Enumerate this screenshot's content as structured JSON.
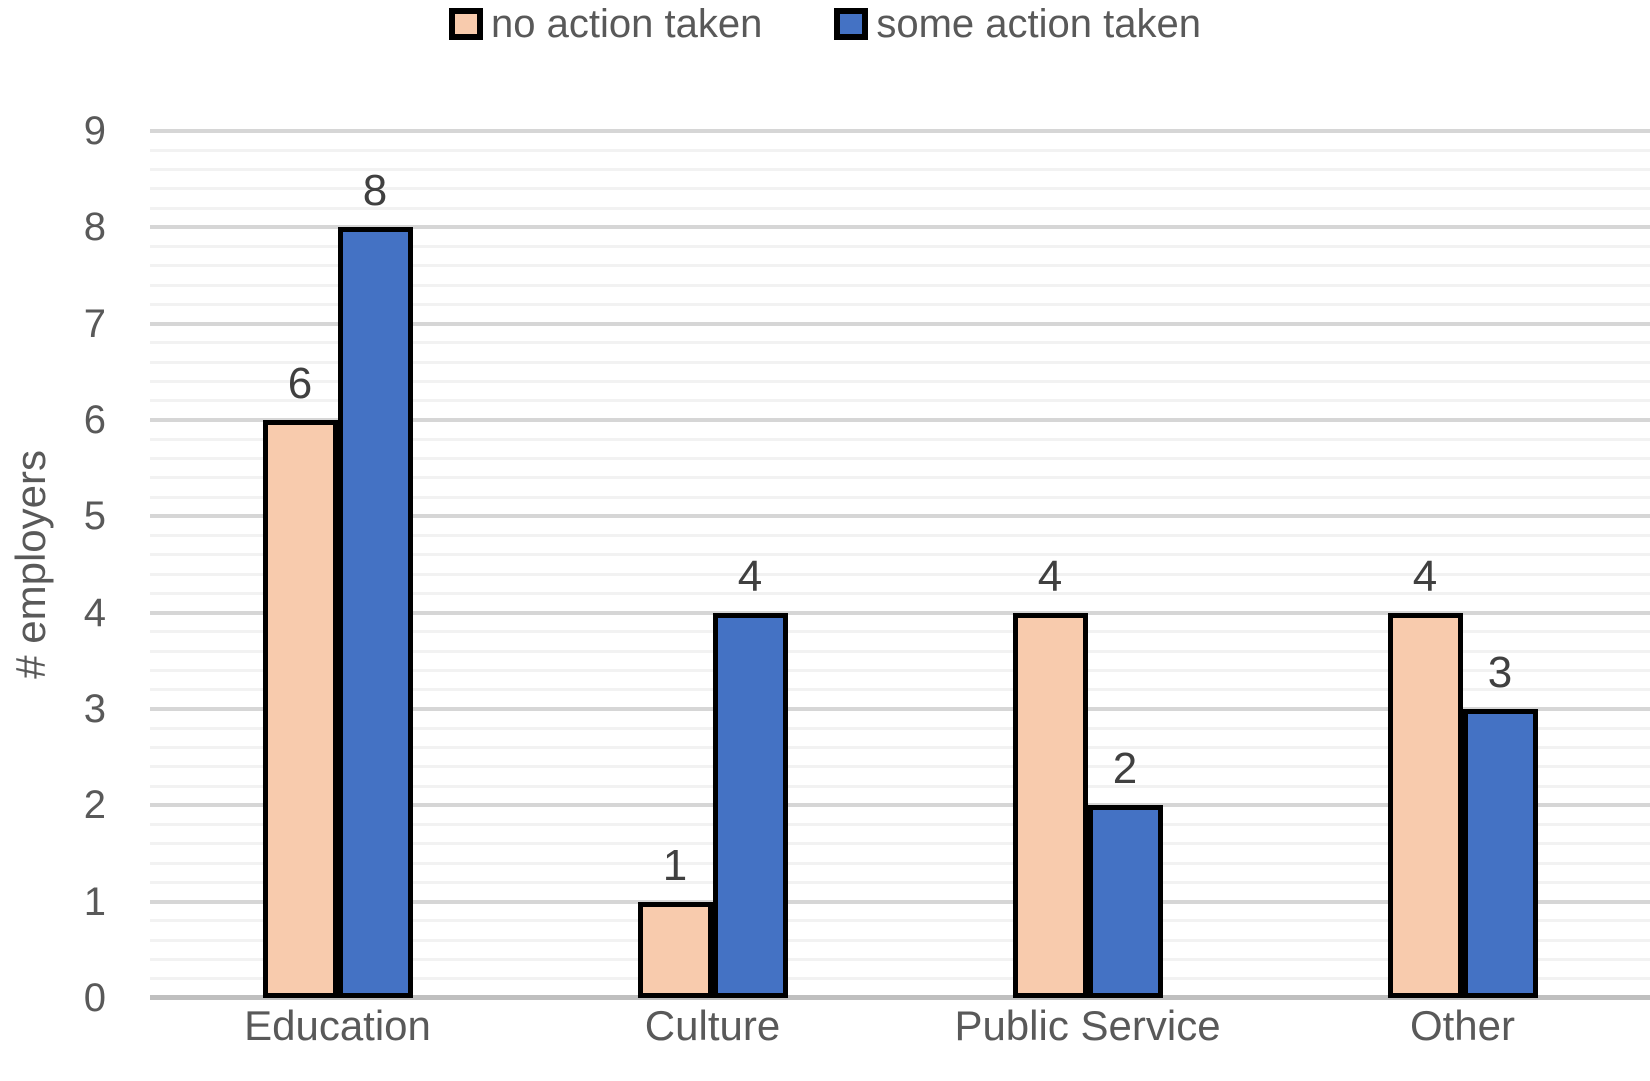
{
  "chart_data": {
    "type": "bar",
    "title": "",
    "categories": [
      "Education",
      "Culture",
      "Public Service",
      "Other"
    ],
    "series": [
      {
        "name": "no action taken",
        "color": "#F8CBAD",
        "values": [
          6,
          1,
          4,
          4
        ]
      },
      {
        "name": "some action taken",
        "color": "#4472C4",
        "values": [
          8,
          4,
          2,
          3
        ]
      }
    ],
    "xlabel": "",
    "ylabel": "# employers",
    "ylim": [
      0,
      9
    ],
    "y_major_step": 1,
    "y_minor_step": 0.2,
    "grid": true,
    "legend_position": "top",
    "data_labels": true,
    "bar_border_color": "#000000"
  },
  "style": {
    "background": "#FFFFFF",
    "major_gridline": "#D6D6D6",
    "minor_gridline": "#F2F2F2",
    "axis_line": "#BFBFBF",
    "tick_color": "#595959",
    "category_color": "#595959",
    "legend_text_color": "#595959",
    "data_label_color": "#404040"
  }
}
